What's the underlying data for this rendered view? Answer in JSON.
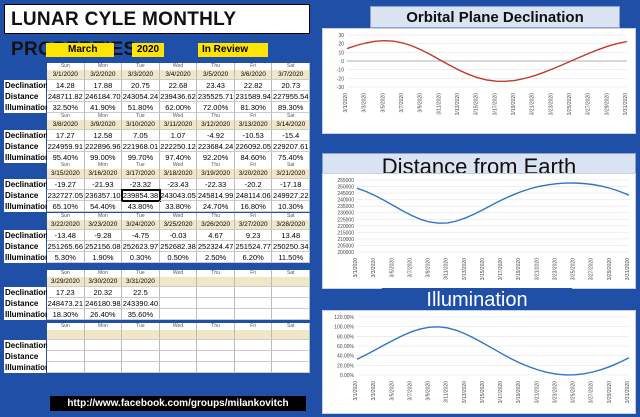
{
  "title": "LUNAR CYLE MONTHLY PROPERTIES",
  "month": "March",
  "year": "2020",
  "review": "In Review",
  "labels": [
    "Declination",
    "Distance",
    "Illumination"
  ],
  "days": [
    "Sun",
    "Mon",
    "Tue",
    "Wed",
    "Thu",
    "Fri",
    "Sat"
  ],
  "weeks": [
    {
      "dates": [
        "3/1/2020",
        "3/2/2020",
        "3/3/2020",
        "3/4/2020",
        "3/5/2020",
        "3/6/2020",
        "3/7/2020"
      ],
      "declination": [
        "14.28",
        "17.88",
        "20.75",
        "22.68",
        "23.43",
        "22.82",
        "20.73"
      ],
      "distance": [
        "248711.82",
        "246184.70",
        "243054.24",
        "239436.62",
        "235525.71",
        "231589.94",
        "227955.54"
      ],
      "illumination": [
        "32.50%",
        "41.90%",
        "51.80%",
        "62.00%",
        "72.00%",
        "81.30%",
        "89.30%"
      ]
    },
    {
      "dates": [
        "3/8/2020",
        "3/9/2020",
        "3/10/2020",
        "3/11/2020",
        "3/12/2020",
        "3/13/2020",
        "3/14/2020"
      ],
      "declination": [
        "17.27",
        "12.58",
        "7.05",
        "1.07",
        "-4.92",
        "-10.53",
        "-15.4"
      ],
      "distance": [
        "224959.91",
        "222896.96",
        "221968.01",
        "222250.12",
        "223684.24",
        "226092.05",
        "229207.61"
      ],
      "illumination": [
        "95.40%",
        "99.00%",
        "99.70%",
        "97.40%",
        "92.20%",
        "84.60%",
        "75.40%"
      ]
    },
    {
      "dates": [
        "3/15/2020",
        "3/16/2020",
        "3/17/2020",
        "3/18/2020",
        "3/19/2020",
        "3/20/2020",
        "3/21/2020"
      ],
      "declination": [
        "-19.27",
        "-21.93",
        "-23.32",
        "-23.43",
        "-22.33",
        "-20.2",
        "-17.18"
      ],
      "distance": [
        "232727.05",
        "236357.10",
        "239854.38",
        "243043.05",
        "245814.99",
        "248114.06",
        "249927.22"
      ],
      "illumination": [
        "65.10%",
        "54.40%",
        "43.80%",
        "33.80%",
        "24.70%",
        "16.80%",
        "10.30%"
      ]
    },
    {
      "dates": [
        "3/22/2020",
        "3/23/2020",
        "3/24/2020",
        "3/25/2020",
        "3/26/2020",
        "3/27/2020",
        "3/28/2020"
      ],
      "declination": [
        "-13.48",
        "-9.28",
        "-4.75",
        "-0.03",
        "4.67",
        "9.23",
        "13.48"
      ],
      "distance": [
        "251265.66",
        "252156.08",
        "252623.97",
        "252682.38",
        "252324.47",
        "251524.77",
        "250250.34"
      ],
      "illumination": [
        "5.30%",
        "1.90%",
        "0.30%",
        "0.50%",
        "2.50%",
        "6.20%",
        "11.50%"
      ]
    },
    {
      "dates": [
        "3/29/2020",
        "3/30/2020",
        "3/31/2020",
        "",
        "",
        "",
        ""
      ],
      "declination": [
        "17.23",
        "20.32",
        "22.5",
        "",
        "",
        "",
        ""
      ],
      "distance": [
        "248473.21",
        "246180.98",
        "243390.40",
        "",
        "",
        "",
        ""
      ],
      "illumination": [
        "18.30%",
        "26.40%",
        "35.60%",
        "",
        "",
        "",
        ""
      ]
    },
    {
      "dates": [
        "",
        "",
        "",
        "",
        "",
        "",
        ""
      ],
      "declination": [
        "",
        "",
        "",
        "",
        "",
        "",
        ""
      ],
      "distance": [
        "",
        "",
        "",
        "",
        "",
        "",
        ""
      ],
      "illumination": [
        "",
        "",
        "",
        "",
        "",
        "",
        ""
      ]
    }
  ],
  "footer": "http://www.facebook.com/groups/milankovitch",
  "chart_data": [
    {
      "type": "line",
      "title": "Orbital Plane Declination",
      "x": [
        "3/1/2020",
        "3/2/2020",
        "3/3/2020",
        "3/4/2020",
        "3/5/2020",
        "3/6/2020",
        "3/7/2020",
        "3/8/2020",
        "3/9/2020",
        "3/10/2020",
        "3/11/2020",
        "3/12/2020",
        "3/13/2020",
        "3/14/2020",
        "3/15/2020",
        "3/16/2020",
        "3/17/2020",
        "3/18/2020",
        "3/19/2020",
        "3/20/2020",
        "3/21/2020",
        "3/22/2020",
        "3/23/2020",
        "3/24/2020",
        "3/25/2020",
        "3/26/2020",
        "3/27/2020",
        "3/28/2020",
        "3/29/2020",
        "3/30/2020",
        "3/31/2020"
      ],
      "tick_labels": [
        "3/1/2020",
        "3/3/2020",
        "3/5/2020",
        "3/7/2020",
        "3/9/2020",
        "3/11/2020",
        "3/13/2020",
        "3/15/2020",
        "3/17/2020",
        "3/19/2020",
        "3/21/2020",
        "3/23/2020",
        "3/25/2020",
        "3/27/2020",
        "3/29/2020",
        "3/31/2020"
      ],
      "values": [
        14.28,
        17.88,
        20.75,
        22.68,
        23.43,
        22.82,
        20.73,
        17.27,
        12.58,
        7.05,
        1.07,
        -4.92,
        -10.53,
        -15.4,
        -19.27,
        -21.93,
        -23.32,
        -23.43,
        -22.33,
        -20.2,
        -17.18,
        -13.48,
        -9.28,
        -4.75,
        -0.03,
        4.67,
        9.23,
        13.48,
        17.23,
        20.32,
        22.5
      ],
      "ylim": [
        -30,
        30
      ],
      "yticks": [
        "30",
        "20",
        "10",
        "0",
        "-10",
        "-20",
        "-30"
      ],
      "color": "#c0392b"
    },
    {
      "type": "line",
      "title": "Distance from Earth",
      "x": [
        "3/1/2020",
        "3/2/2020",
        "3/3/2020",
        "3/4/2020",
        "3/5/2020",
        "3/6/2020",
        "3/7/2020",
        "3/8/2020",
        "3/9/2020",
        "3/10/2020",
        "3/11/2020",
        "3/12/2020",
        "3/13/2020",
        "3/14/2020",
        "3/15/2020",
        "3/16/2020",
        "3/17/2020",
        "3/18/2020",
        "3/19/2020",
        "3/20/2020",
        "3/21/2020",
        "3/22/2020",
        "3/23/2020",
        "3/24/2020",
        "3/25/2020",
        "3/26/2020",
        "3/27/2020",
        "3/28/2020",
        "3/29/2020",
        "3/30/2020",
        "3/31/2020"
      ],
      "tick_labels": [
        "3/1/2020",
        "3/3/2020",
        "3/5/2020",
        "3/7/2020",
        "3/9/2020",
        "3/11/2020",
        "3/13/2020",
        "3/15/2020",
        "3/17/2020",
        "3/19/2020",
        "3/21/2020",
        "3/23/2020",
        "3/25/2020",
        "3/27/2020",
        "3/29/2020",
        "3/31/2020"
      ],
      "values": [
        248711.82,
        246184.7,
        243054.24,
        239436.62,
        235525.71,
        231589.94,
        227955.54,
        224959.91,
        222896.96,
        221968.01,
        222250.12,
        223684.24,
        226092.05,
        229207.61,
        232727.05,
        236357.1,
        239854.38,
        243043.05,
        245814.99,
        248114.06,
        249927.22,
        251265.66,
        252156.08,
        252623.97,
        252682.38,
        252324.47,
        251524.77,
        250250.34,
        248473.21,
        246180.98,
        243390.4
      ],
      "ylim": [
        200000,
        255000
      ],
      "yticks": [
        "255000",
        "250000",
        "245000",
        "240000",
        "235000",
        "230000",
        "225000",
        "220000",
        "215000",
        "210000",
        "205000",
        "200000"
      ],
      "color": "#2e75c7"
    },
    {
      "type": "line",
      "title": "Illumination",
      "x": [
        "3/1/2020",
        "3/2/2020",
        "3/3/2020",
        "3/4/2020",
        "3/5/2020",
        "3/6/2020",
        "3/7/2020",
        "3/8/2020",
        "3/9/2020",
        "3/10/2020",
        "3/11/2020",
        "3/12/2020",
        "3/13/2020",
        "3/14/2020",
        "3/15/2020",
        "3/16/2020",
        "3/17/2020",
        "3/18/2020",
        "3/19/2020",
        "3/20/2020",
        "3/21/2020",
        "3/22/2020",
        "3/23/2020",
        "3/24/2020",
        "3/25/2020",
        "3/26/2020",
        "3/27/2020",
        "3/28/2020",
        "3/29/2020",
        "3/30/2020",
        "3/31/2020"
      ],
      "tick_labels": [
        "3/1/2020",
        "3/3/2020",
        "3/5/2020",
        "3/7/2020",
        "3/9/2020",
        "3/11/2020",
        "3/13/2020",
        "3/15/2020",
        "3/17/2020",
        "3/19/2020",
        "3/21/2020",
        "3/23/2020",
        "3/25/2020",
        "3/27/2020",
        "3/29/2020",
        "3/31/2020"
      ],
      "values": [
        32.5,
        41.9,
        51.8,
        62.0,
        72.0,
        81.3,
        89.3,
        95.4,
        99.0,
        99.7,
        97.4,
        92.2,
        84.6,
        75.4,
        65.1,
        54.4,
        43.8,
        33.8,
        24.7,
        16.8,
        10.3,
        5.3,
        1.9,
        0.3,
        0.5,
        2.5,
        6.2,
        11.5,
        18.3,
        26.4,
        35.6
      ],
      "ylim": [
        0,
        120
      ],
      "yticks": [
        "120.00%",
        "100.00%",
        "80.00%",
        "60.00%",
        "40.00%",
        "20.00%",
        "0.00%"
      ],
      "color": "#2e75c7"
    }
  ]
}
